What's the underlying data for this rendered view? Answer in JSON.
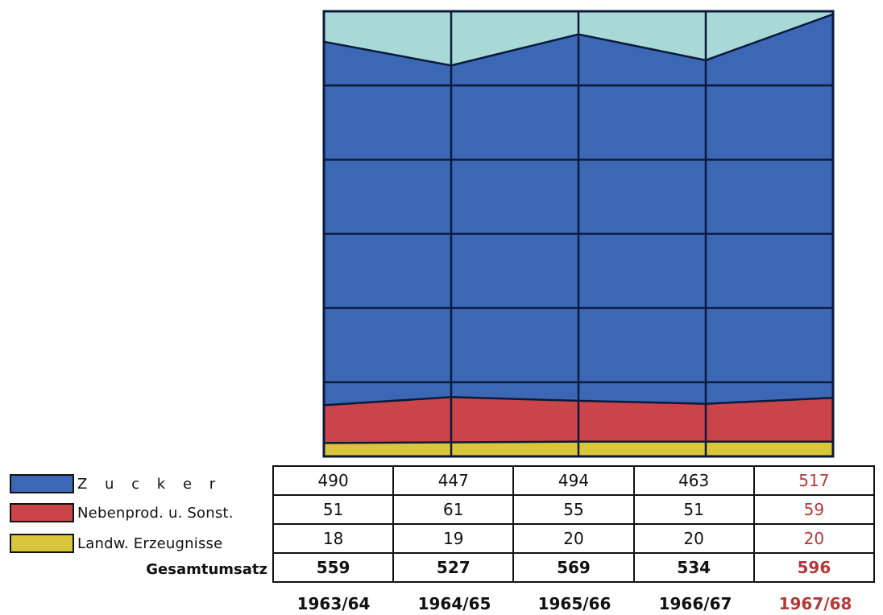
{
  "chart_data": {
    "type": "area",
    "stacked": true,
    "categories": [
      "1963/64",
      "1964/65",
      "1965/66",
      "1966/67",
      "1967/68"
    ],
    "series": [
      {
        "name": "Landw. Erzeugnisse",
        "values": [
          18,
          19,
          20,
          20,
          20
        ],
        "color": "#d8c73a"
      },
      {
        "name": "Nebenprod. u. Sonst.",
        "values": [
          51,
          61,
          55,
          51,
          59
        ],
        "color": "#c9454a"
      },
      {
        "name": "Z u c k e r",
        "values": [
          490,
          447,
          494,
          463,
          517
        ],
        "color": "#3b67b5"
      }
    ],
    "totals_label": "Gesamtumsatz",
    "totals": [
      559,
      527,
      569,
      534,
      596
    ],
    "highlight_color": "#b23a3a",
    "background_color": "#a9d9d7",
    "grid": true
  },
  "legend": {
    "zucker": "Z u c k e r",
    "neben": "Nebenprod. u. Sonst.",
    "landw": "Landw. Erzeugnisse"
  },
  "table": {
    "zucker": [
      "490",
      "447",
      "494",
      "463",
      "517"
    ],
    "neben": [
      "51",
      "61",
      "55",
      "51",
      "59"
    ],
    "landw": [
      "18",
      "19",
      "20",
      "20",
      "20"
    ],
    "total": [
      "559",
      "527",
      "569",
      "534",
      "596"
    ]
  },
  "years": [
    "1963/64",
    "1964/65",
    "1965/66",
    "1966/67",
    "1967/68"
  ]
}
